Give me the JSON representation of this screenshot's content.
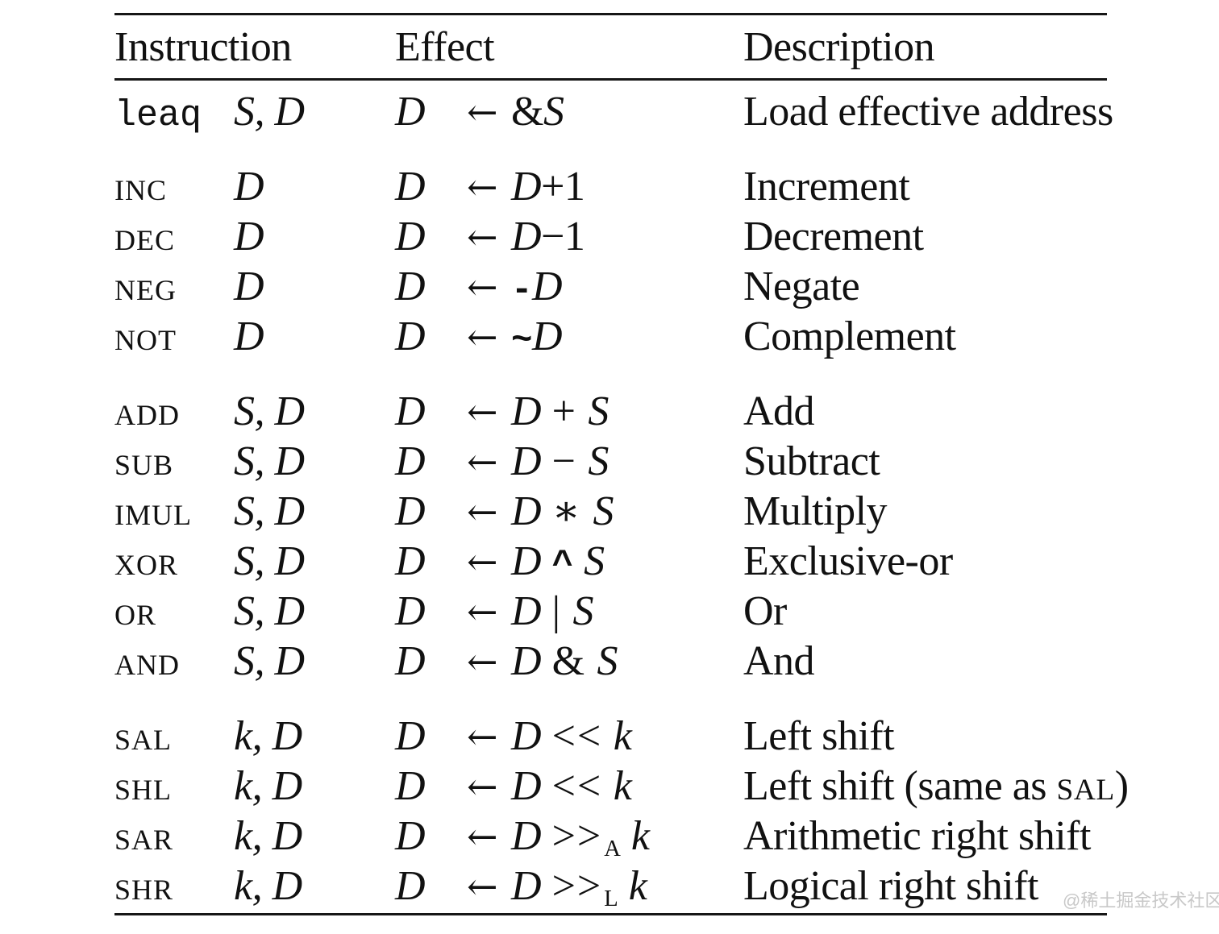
{
  "table": {
    "headers": {
      "instruction": "Instruction",
      "effect": "Effect",
      "description": "Description"
    },
    "arrow": "←",
    "groups": [
      {
        "rows": [
          {
            "name": "leaq",
            "name_style": "mono",
            "operands": "S, D",
            "dest": "D",
            "expr": [
              [
                "rm",
                "&"
              ],
              [
                "var",
                "S"
              ]
            ],
            "desc": [
              [
                "t",
                "Load effective address"
              ]
            ]
          }
        ]
      },
      {
        "rows": [
          {
            "name": "INC",
            "name_style": "sc",
            "operands": "D",
            "dest": "D",
            "expr": [
              [
                "var",
                "D"
              ],
              [
                "tight",
                "+"
              ],
              [
                "num",
                "1"
              ]
            ],
            "desc": [
              [
                "t",
                "Increment"
              ]
            ]
          },
          {
            "name": "DEC",
            "name_style": "sc",
            "operands": "D",
            "dest": "D",
            "expr": [
              [
                "var",
                "D"
              ],
              [
                "tight",
                "−"
              ],
              [
                "num",
                "1"
              ]
            ],
            "desc": [
              [
                "t",
                "Decrement"
              ]
            ]
          },
          {
            "name": "NEG",
            "name_style": "sc",
            "operands": "D",
            "dest": "D",
            "expr": [
              [
                "mono",
                "-"
              ],
              [
                "var",
                "D"
              ]
            ],
            "desc": [
              [
                "t",
                "Negate"
              ]
            ]
          },
          {
            "name": "NOT",
            "name_style": "sc",
            "operands": "D",
            "dest": "D",
            "expr": [
              [
                "mono",
                "~"
              ],
              [
                "var",
                "D"
              ]
            ],
            "desc": [
              [
                "t",
                "Complement"
              ]
            ]
          }
        ]
      },
      {
        "rows": [
          {
            "name": "ADD",
            "name_style": "sc",
            "operands": "S, D",
            "dest": "D",
            "expr": [
              [
                "var",
                "D"
              ],
              [
                "sp",
                ""
              ],
              [
                "op",
                "+"
              ],
              [
                "sp",
                ""
              ],
              [
                "var",
                "S"
              ]
            ],
            "desc": [
              [
                "t",
                "Add"
              ]
            ]
          },
          {
            "name": "SUB",
            "name_style": "sc",
            "operands": "S, D",
            "dest": "D",
            "expr": [
              [
                "var",
                "D"
              ],
              [
                "sp",
                ""
              ],
              [
                "op",
                "−"
              ],
              [
                "sp",
                ""
              ],
              [
                "var",
                "S"
              ]
            ],
            "desc": [
              [
                "t",
                "Subtract"
              ]
            ]
          },
          {
            "name": "IMUL",
            "name_style": "sc",
            "operands": "S, D",
            "dest": "D",
            "expr": [
              [
                "var",
                "D"
              ],
              [
                "sp",
                ""
              ],
              [
                "op",
                "∗"
              ],
              [
                "sp",
                ""
              ],
              [
                "var",
                "S"
              ]
            ],
            "desc": [
              [
                "t",
                "Multiply"
              ]
            ]
          },
          {
            "name": "XOR",
            "name_style": "sc",
            "operands": "S, D",
            "dest": "D",
            "expr": [
              [
                "var",
                "D"
              ],
              [
                "sp",
                ""
              ],
              [
                "mono",
                "^"
              ],
              [
                "sp",
                ""
              ],
              [
                "var",
                "S"
              ]
            ],
            "desc": [
              [
                "t",
                "Exclusive-or"
              ]
            ]
          },
          {
            "name": "OR",
            "name_style": "sc",
            "operands": "S, D",
            "dest": "D",
            "expr": [
              [
                "var",
                "D"
              ],
              [
                "sp",
                ""
              ],
              [
                "op",
                "|"
              ],
              [
                "sp",
                ""
              ],
              [
                "var",
                "S"
              ]
            ],
            "desc": [
              [
                "t",
                "Or"
              ]
            ]
          },
          {
            "name": "AND",
            "name_style": "sc",
            "operands": "S, D",
            "dest": "D",
            "expr": [
              [
                "var",
                "D"
              ],
              [
                "sp",
                ""
              ],
              [
                "op",
                "&"
              ],
              [
                "sp",
                ""
              ],
              [
                "var",
                "S"
              ]
            ],
            "desc": [
              [
                "t",
                "And"
              ]
            ]
          }
        ]
      },
      {
        "rows": [
          {
            "name": "SAL",
            "name_style": "sc",
            "operands": "k, D",
            "dest": "D",
            "expr": [
              [
                "var",
                "D"
              ],
              [
                "sp",
                ""
              ],
              [
                "op",
                "<<"
              ],
              [
                "sp",
                ""
              ],
              [
                "var",
                "k"
              ]
            ],
            "desc": [
              [
                "t",
                "Left shift"
              ]
            ]
          },
          {
            "name": "SHL",
            "name_style": "sc",
            "operands": "k, D",
            "dest": "D",
            "expr": [
              [
                "var",
                "D"
              ],
              [
                "sp",
                ""
              ],
              [
                "op",
                "<<"
              ],
              [
                "sp",
                ""
              ],
              [
                "var",
                "k"
              ]
            ],
            "desc": [
              [
                "t",
                "Left shift (same as "
              ],
              [
                "sc",
                "SAL"
              ],
              [
                "t",
                ")"
              ]
            ]
          },
          {
            "name": "SAR",
            "name_style": "sc",
            "operands": "k, D",
            "dest": "D",
            "expr": [
              [
                "var",
                "D"
              ],
              [
                "sp",
                ""
              ],
              [
                "op",
                ">>"
              ],
              [
                "sub",
                "A"
              ],
              [
                "sp",
                ""
              ],
              [
                "var",
                "k"
              ]
            ],
            "desc": [
              [
                "t",
                "Arithmetic right shift"
              ]
            ]
          },
          {
            "name": "SHR",
            "name_style": "sc",
            "operands": "k, D",
            "dest": "D",
            "expr": [
              [
                "var",
                "D"
              ],
              [
                "sp",
                ""
              ],
              [
                "op",
                ">>"
              ],
              [
                "sub",
                "L"
              ],
              [
                "sp",
                ""
              ],
              [
                "var",
                "k"
              ]
            ],
            "desc": [
              [
                "t",
                "Logical right shift"
              ]
            ]
          }
        ]
      }
    ],
    "watermark": "@稀土掘金技术社区"
  }
}
